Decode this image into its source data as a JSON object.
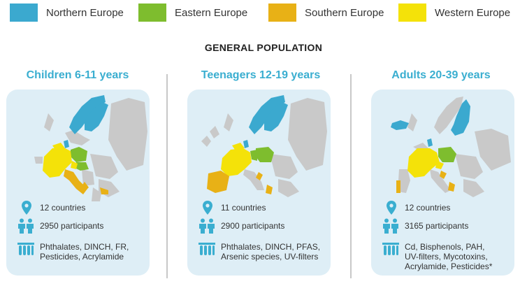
{
  "legend": [
    {
      "label": "Northern Europe",
      "color": "#3ba9cf"
    },
    {
      "label": "Eastern Europe",
      "color": "#7ebd2e"
    },
    {
      "label": "Southern Europe",
      "color": "#e8b116"
    },
    {
      "label": "Western Europe",
      "color": "#f4e209"
    }
  ],
  "title": "GENERAL POPULATION",
  "groups": [
    {
      "title": "Children 6-11 years",
      "countries": "12 countries",
      "participants": "2950 participants",
      "substances": "Phthalates, DINCH, FR,\nPesticides, Acrylamide"
    },
    {
      "title": "Teenagers 12-19 years",
      "countries": "11 countries",
      "participants": "2900 participants",
      "substances": "Phthalates, DINCH, PFAS,\nArsenic species, UV-filters"
    },
    {
      "title": "Adults 20-39 years",
      "countries": "12 countries",
      "participants": "3165 participants",
      "substances": "Cd, Bisphenols, PAH,\nUV-filters, Mycotoxins,\nAcrylamide, Pesticides*"
    }
  ],
  "icons": {
    "countries": "location-pin-icon",
    "participants": "people-icon",
    "substances": "test-tubes-icon"
  },
  "colors": {
    "accent": "#3aaed0",
    "panel": "#deeef6",
    "map_grey": "#c9c9c9"
  }
}
